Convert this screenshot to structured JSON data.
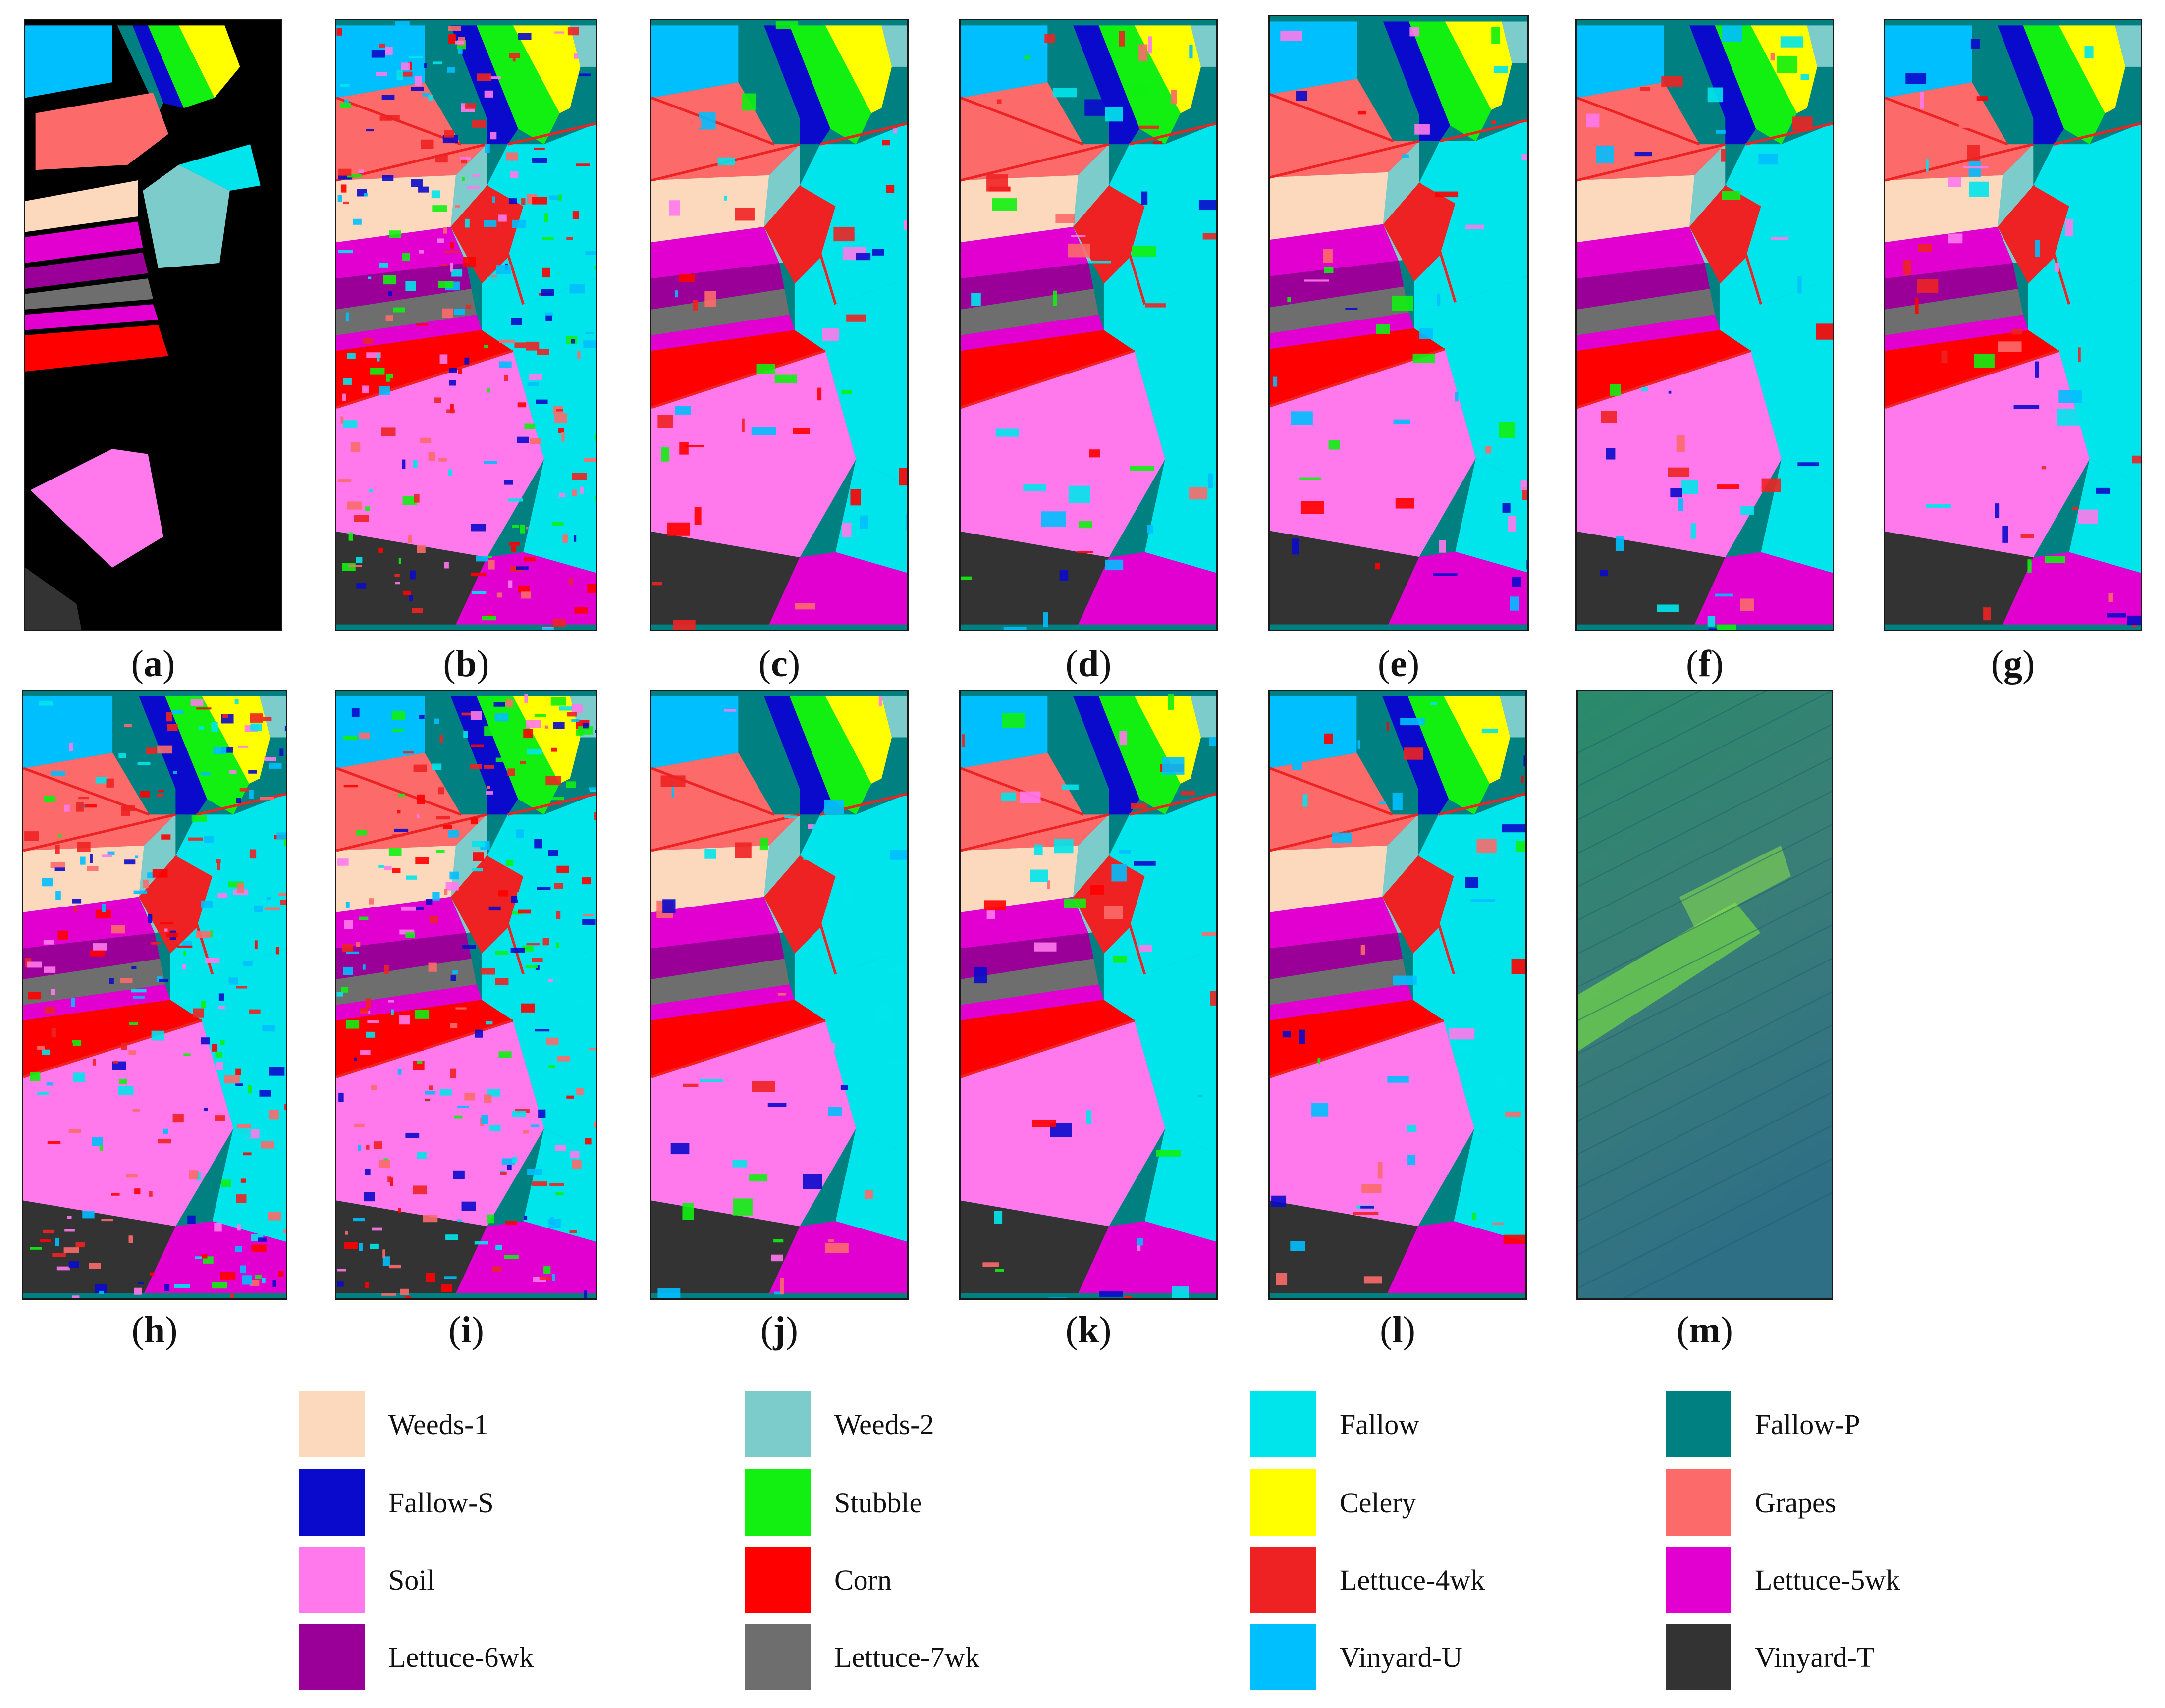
{
  "figure": {
    "panels": [
      {
        "id": "a",
        "label": "a",
        "kind": "ground-truth"
      },
      {
        "id": "b",
        "label": "b",
        "kind": "noisy"
      },
      {
        "id": "c",
        "label": "c",
        "kind": "smooth"
      },
      {
        "id": "d",
        "label": "d",
        "kind": "smooth"
      },
      {
        "id": "e",
        "label": "e",
        "kind": "smooth"
      },
      {
        "id": "f",
        "label": "f",
        "kind": "smooth"
      },
      {
        "id": "g",
        "label": "g",
        "kind": "smooth"
      },
      {
        "id": "h",
        "label": "h",
        "kind": "noisy"
      },
      {
        "id": "i",
        "label": "i",
        "kind": "noisy"
      },
      {
        "id": "j",
        "label": "j",
        "kind": "smooth"
      },
      {
        "id": "k",
        "label": "k",
        "kind": "smooth"
      },
      {
        "id": "l",
        "label": "l",
        "kind": "smooth"
      },
      {
        "id": "m",
        "label": "m",
        "kind": "false-color"
      }
    ],
    "legend": [
      {
        "name": "Weeds-1",
        "color": "#fcd9bd"
      },
      {
        "name": "Weeds-2",
        "color": "#7dcccc"
      },
      {
        "name": "Fallow",
        "color": "#00e5ec"
      },
      {
        "name": "Fallow-P",
        "color": "#008080"
      },
      {
        "name": "Fallow-S",
        "color": "#0a0acc"
      },
      {
        "name": "Stubble",
        "color": "#11f011"
      },
      {
        "name": "Celery",
        "color": "#ffff00"
      },
      {
        "name": "Grapes",
        "color": "#fc6a6a"
      },
      {
        "name": "Soil",
        "color": "#ff79ec"
      },
      {
        "name": "Corn",
        "color": "#ff0000"
      },
      {
        "name": "Lettuce-4wk",
        "color": "#ee2222"
      },
      {
        "name": "Lettuce-5wk",
        "color": "#e100d0"
      },
      {
        "name": "Lettuce-6wk",
        "color": "#9a0098"
      },
      {
        "name": "Lettuce-7wk",
        "color": "#6e6e6e"
      },
      {
        "name": "Vinyard-U",
        "color": "#00bfff"
      },
      {
        "name": "Vinyard-T",
        "color": "#333333"
      }
    ]
  }
}
